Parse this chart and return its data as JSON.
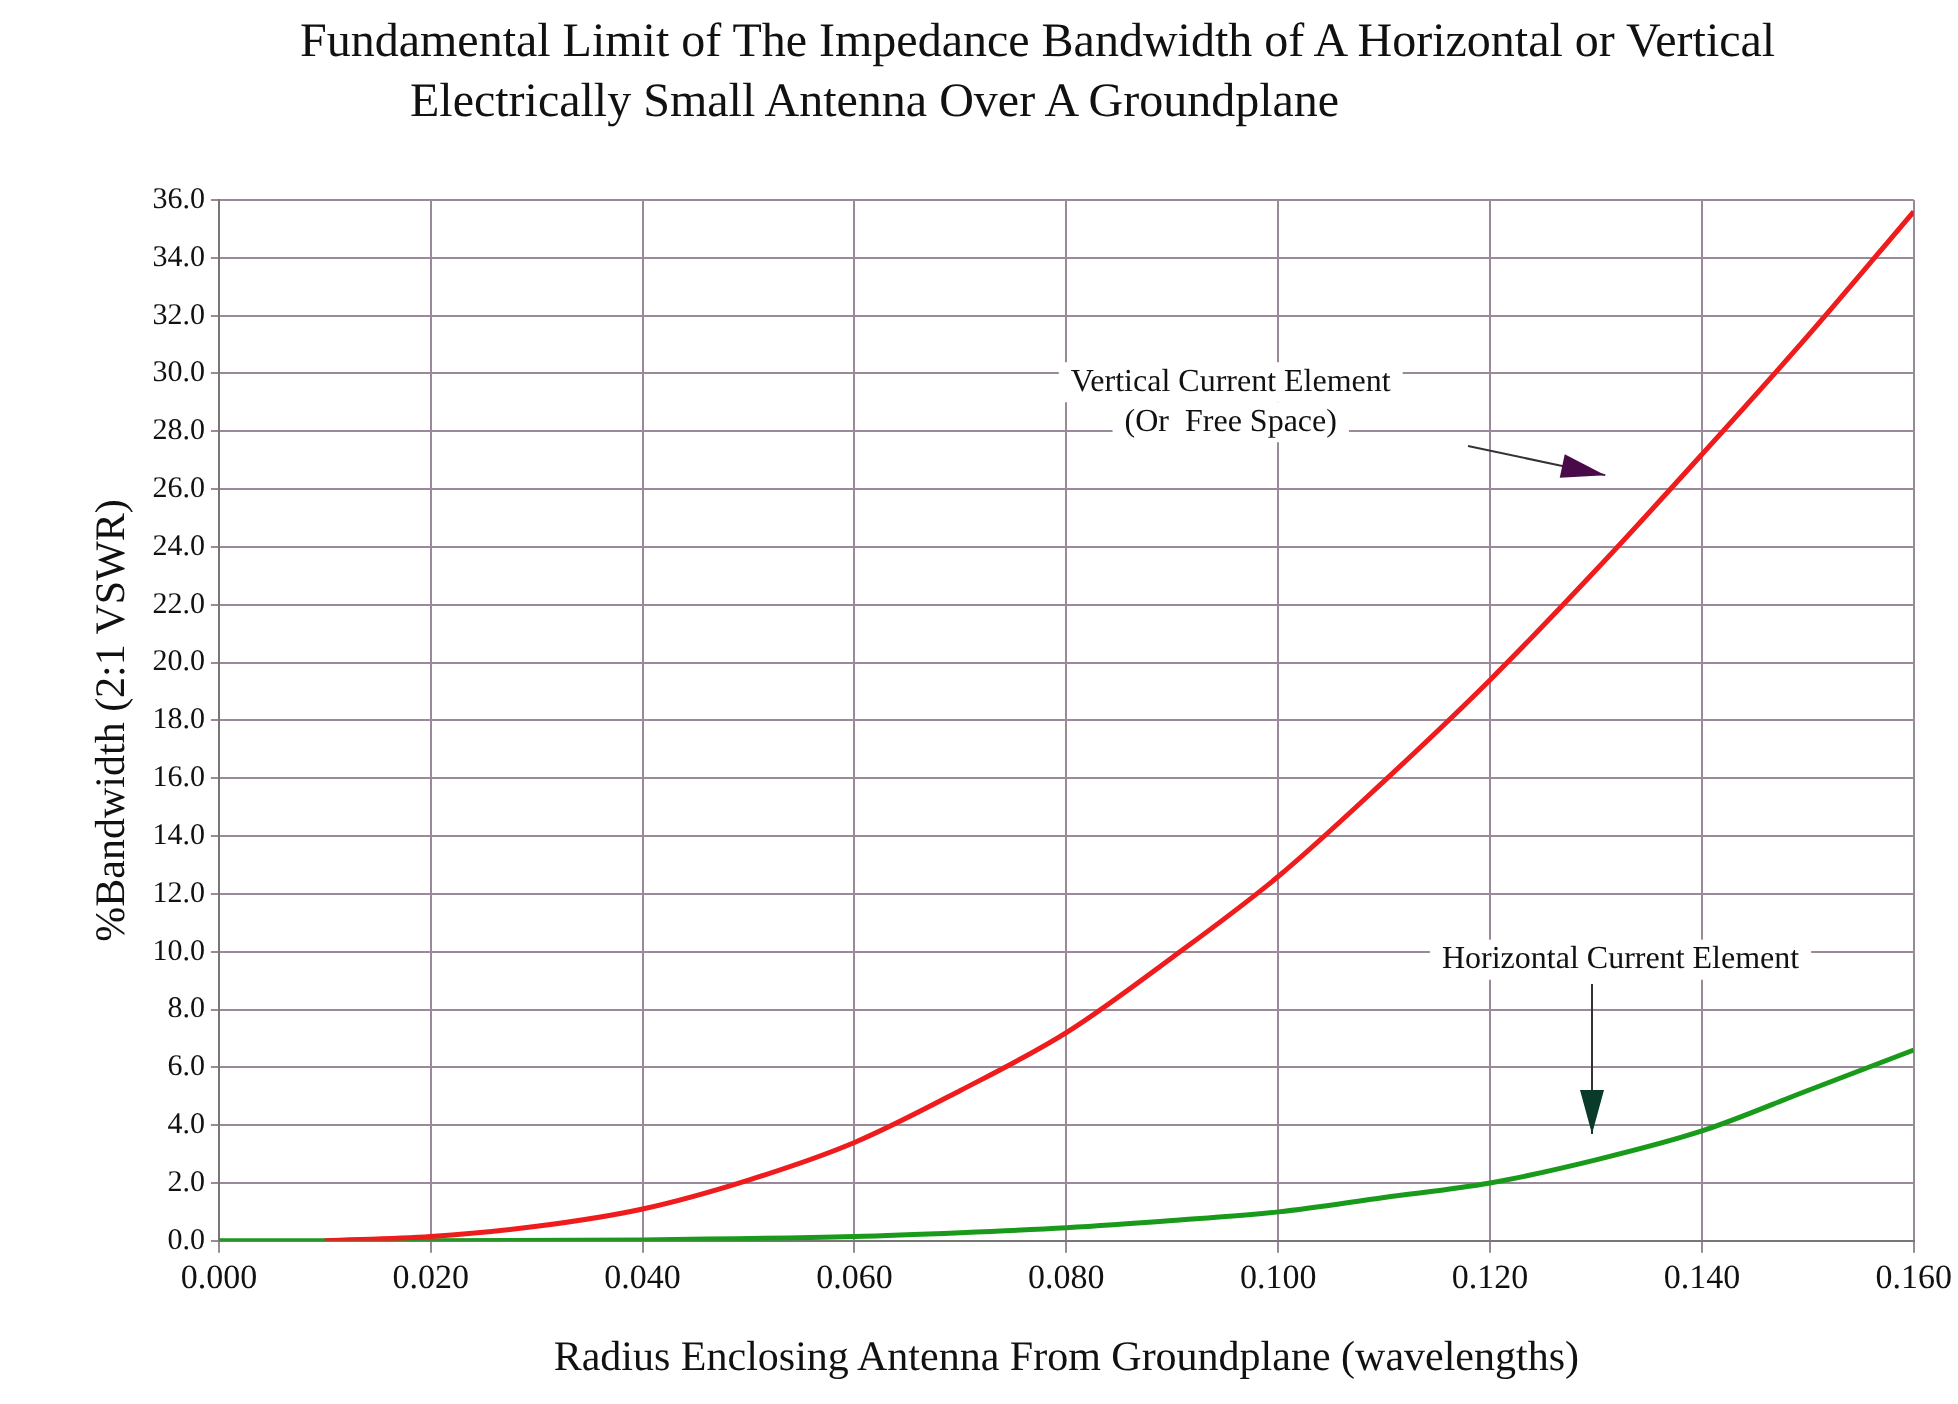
{
  "chart_data": {
    "type": "line",
    "title": "Fundamental Limit of The Impedance Bandwidth of A Horizontal or Vertical\nElectrically Small Antenna Over A Groundplane",
    "xlabel": "Radius Enclosing Antenna From Groundplane (wavelengths)",
    "ylabel": "%Bandwidth (2:1 VSWR)",
    "xlim": [
      0,
      0.16
    ],
    "xticks": [
      {
        "value": 0,
        "label": "0.000"
      },
      {
        "value": 0.02,
        "label": "0.020"
      },
      {
        "value": 0.04,
        "label": "0.040"
      },
      {
        "value": 0.06,
        "label": "0.060"
      },
      {
        "value": 0.08,
        "label": "0.080"
      },
      {
        "value": 0.1,
        "label": "0.100"
      },
      {
        "value": 0.12,
        "label": "0.120"
      },
      {
        "value": 0.14,
        "label": "0.140"
      },
      {
        "value": 0.16,
        "label": "0.160"
      }
    ],
    "ylim": [
      0,
      36
    ],
    "yticks": [
      {
        "value": 0,
        "label": "0.0"
      },
      {
        "value": 2,
        "label": "2.0"
      },
      {
        "value": 4,
        "label": "4.0"
      },
      {
        "value": 6,
        "label": "6.0"
      },
      {
        "value": 8,
        "label": "8.0"
      },
      {
        "value": 10,
        "label": "10.0"
      },
      {
        "value": 12,
        "label": "12.0"
      },
      {
        "value": 14,
        "label": "14.0"
      },
      {
        "value": 16,
        "label": "16.0"
      },
      {
        "value": 18,
        "label": "18.0"
      },
      {
        "value": 20,
        "label": "20.0"
      },
      {
        "value": 22,
        "label": "22.0"
      },
      {
        "value": 24,
        "label": "24.0"
      },
      {
        "value": 26,
        "label": "26.0"
      },
      {
        "value": 28,
        "label": "28.0"
      },
      {
        "value": 30,
        "label": "30.0"
      },
      {
        "value": 32,
        "label": "32.0"
      },
      {
        "value": 34,
        "label": "34.0"
      },
      {
        "value": 36,
        "label": "36.0"
      }
    ],
    "grid": true,
    "legend": false,
    "series": [
      {
        "color": "#ee1c1c",
        "x": [
          0.01,
          0.02,
          0.03,
          0.04,
          0.05,
          0.06,
          0.07,
          0.08,
          0.09,
          0.1,
          0.11,
          0.12,
          0.13,
          0.14,
          0.15,
          0.16
        ],
        "values": [
          0,
          0.15,
          0.5,
          1.1,
          2.1,
          3.4,
          5.2,
          7.2,
          9.8,
          12.6,
          15.9,
          19.4,
          23.2,
          27.2,
          31.3,
          35.6
        ]
      },
      {
        "color": "#1a9a1a",
        "x": [
          0,
          0.02,
          0.04,
          0.06,
          0.07,
          0.08,
          0.09,
          0.1,
          0.11,
          0.12,
          0.13,
          0.14,
          0.15,
          0.16
        ],
        "values": [
          0,
          0,
          0.03,
          0.15,
          0.28,
          0.45,
          0.7,
          1.0,
          1.5,
          2.0,
          2.8,
          3.8,
          5.2,
          6.6
        ]
      }
    ],
    "annotations": [
      "Vertical Current Element\n(Or  Free Space)",
      "Horizontal Current Element"
    ]
  }
}
